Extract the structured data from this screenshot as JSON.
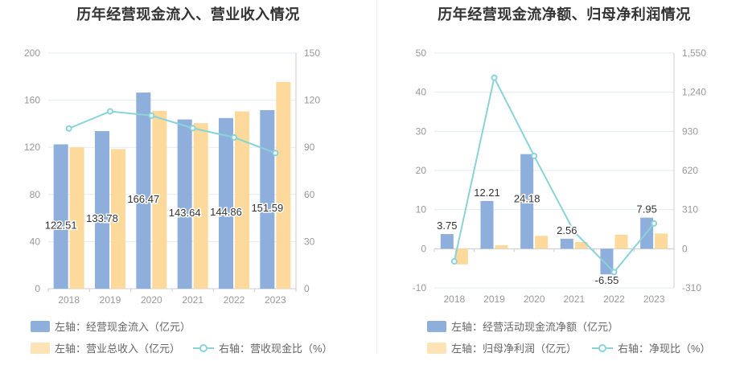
{
  "colors": {
    "bar_primary": "#8eaedb",
    "bar_secondary": "#fdd99b",
    "line": "#89d3d9",
    "axis_text": "#999999",
    "grid": "#e6ebf2"
  },
  "chart_data": [
    {
      "type": "bar",
      "title": "历年经营现金流入、营业收入情况",
      "categories": [
        "2018",
        "2019",
        "2020",
        "2021",
        "2022",
        "2023"
      ],
      "y_left": {
        "min": 0,
        "max": 200,
        "ticks": [
          "0",
          "40",
          "80",
          "120",
          "160",
          "200"
        ]
      },
      "y_right": {
        "min": 0,
        "max": 150,
        "ticks": [
          "0",
          "30",
          "60",
          "90",
          "120",
          "150"
        ]
      },
      "series": [
        {
          "name": "左轴：经营现金流入（亿元）",
          "axis": "left",
          "kind": "bar",
          "values": [
            122.51,
            133.78,
            166.47,
            143.64,
            144.86,
            151.59
          ],
          "labels": [
            "122.51",
            "133.78",
            "166.47",
            "143.64",
            "144.86",
            "151.59"
          ]
        },
        {
          "name": "左轴：营业总收入（亿元）",
          "axis": "left",
          "kind": "bar",
          "values": [
            120.0,
            118.5,
            151.0,
            140.5,
            150.5,
            175.5
          ]
        },
        {
          "name": "右轴：营收现金比（%）",
          "axis": "right",
          "kind": "line",
          "values": [
            102,
            112.9,
            110.2,
            102.2,
            96.3,
            86.4
          ]
        }
      ]
    },
    {
      "type": "bar",
      "title": "历年经营现金流净额、归母净利润情况",
      "categories": [
        "2018",
        "2019",
        "2020",
        "2021",
        "2022",
        "2023"
      ],
      "y_left": {
        "min": -10,
        "max": 50,
        "ticks": [
          "-10",
          "0",
          "10",
          "20",
          "30",
          "40",
          "50"
        ]
      },
      "y_right": {
        "min": -310,
        "max": 1550,
        "ticks": [
          "-310",
          "0",
          "310",
          "620",
          "930",
          "1,240",
          "1,550"
        ]
      },
      "series": [
        {
          "name": "左轴：经营活动现金流净额（亿元）",
          "axis": "left",
          "kind": "bar",
          "values": [
            3.75,
            12.21,
            24.18,
            2.56,
            -6.55,
            7.95
          ],
          "labels": [
            "3.75",
            "12.21",
            "24.18",
            "2.56",
            "-6.55",
            "7.95"
          ]
        },
        {
          "name": "左轴：归母净利润（亿元）",
          "axis": "left",
          "kind": "bar",
          "values": [
            -4.0,
            0.9,
            3.3,
            1.7,
            3.6,
            3.9
          ]
        },
        {
          "name": "右轴：净现比（%）",
          "axis": "right",
          "kind": "line",
          "values": [
            -100,
            1355,
            735,
            135,
            -185,
            200
          ]
        }
      ]
    }
  ]
}
